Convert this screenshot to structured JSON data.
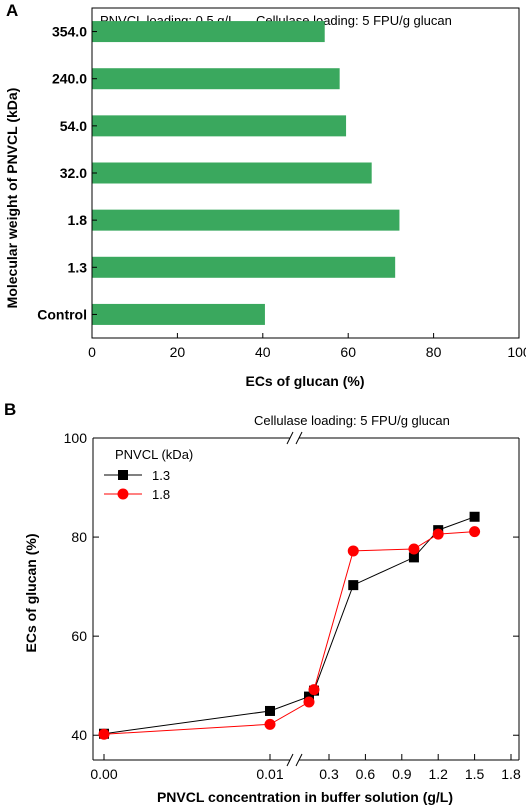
{
  "chart_data": [
    {
      "type": "bar",
      "orientation": "horizontal",
      "panel_label": "A",
      "annotations": [
        "PNVCL loading: 0.5 g/L",
        "Cellulase loading: 5 FPU/g glucan"
      ],
      "categories": [
        "354.0",
        "240.0",
        "54.0",
        "32.0",
        "1.8",
        "1.3",
        "Control"
      ],
      "values": [
        54.5,
        58,
        59.5,
        65.5,
        72,
        71,
        40.5
      ],
      "xlabel": "ECs of glucan (%)",
      "ylabel": "Molecular weight of PNVCL (kDa)",
      "xlim": [
        0,
        100
      ],
      "xticks": [
        "0",
        "20",
        "40",
        "60",
        "80",
        "100"
      ],
      "bar_color": "#3aa85e",
      "grid": false
    },
    {
      "type": "line",
      "panel_label": "B",
      "annotation": "Cellulase loading: 5 FPU/g glucan",
      "xlabel": "PNVCL concentration in buffer solution (g/L)",
      "ylabel": "ECs of glucan (%)",
      "ylim": [
        35,
        100
      ],
      "yticks": [
        "40",
        "60",
        "80",
        "100"
      ],
      "xticks": [
        "0.00",
        "0.01",
        "0.3",
        "0.6",
        "0.9",
        "1.2",
        "1.5",
        "1.8"
      ],
      "axis_break": true,
      "legend_title": "PNVCL (kDa)",
      "legend_position": "top-left",
      "series": [
        {
          "name": "1.3",
          "color": "#000000",
          "marker": "square",
          "x": [
            0.0,
            0.01,
            0.1,
            0.15,
            0.5,
            1.0,
            1.2,
            1.5
          ],
          "y": [
            40.3,
            44.9,
            47.8,
            49.0,
            70.3,
            75.9,
            81.4,
            84.1
          ]
        },
        {
          "name": "1.8",
          "color": "#ff0000",
          "marker": "circle",
          "x": [
            0.0,
            0.01,
            0.1,
            0.15,
            0.5,
            1.0,
            1.2,
            1.5
          ],
          "y": [
            40.2,
            42.2,
            46.7,
            49.2,
            77.2,
            77.6,
            80.6,
            81.1
          ]
        }
      ]
    }
  ]
}
